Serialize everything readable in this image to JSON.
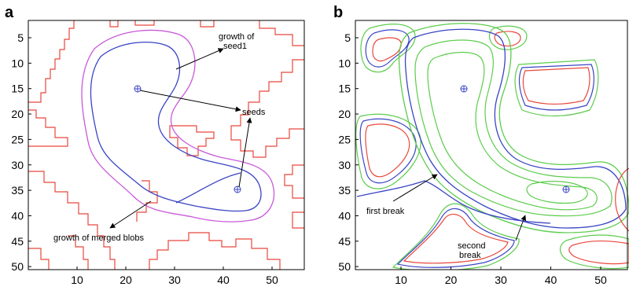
{
  "panels": [
    {
      "letter": "a",
      "xticks": [
        "10",
        "20",
        "30",
        "40",
        "50"
      ],
      "yticks": [
        "5",
        "10",
        "15",
        "20",
        "25",
        "30",
        "35",
        "40",
        "45",
        "50"
      ],
      "annotations": {
        "growth_seed1_line1": "growth of",
        "growth_seed1_line2": "seed1",
        "seeds": "seeds",
        "growth_merged": "growth of merged blobs"
      }
    },
    {
      "letter": "b",
      "xticks": [
        "10",
        "20",
        "30",
        "40",
        "50"
      ],
      "yticks": [
        "5",
        "10",
        "15",
        "20",
        "25",
        "30",
        "35",
        "40",
        "45",
        "50"
      ],
      "annotations": {
        "first_break": "first break",
        "second_break_line1": "second",
        "second_break_line2": "break"
      }
    }
  ],
  "colors": {
    "red": "#e8483c",
    "blue": "#3a44c4",
    "magenta": "#c85ad8",
    "green": "#5ccc4c",
    "seed": "#3a44c4"
  }
}
